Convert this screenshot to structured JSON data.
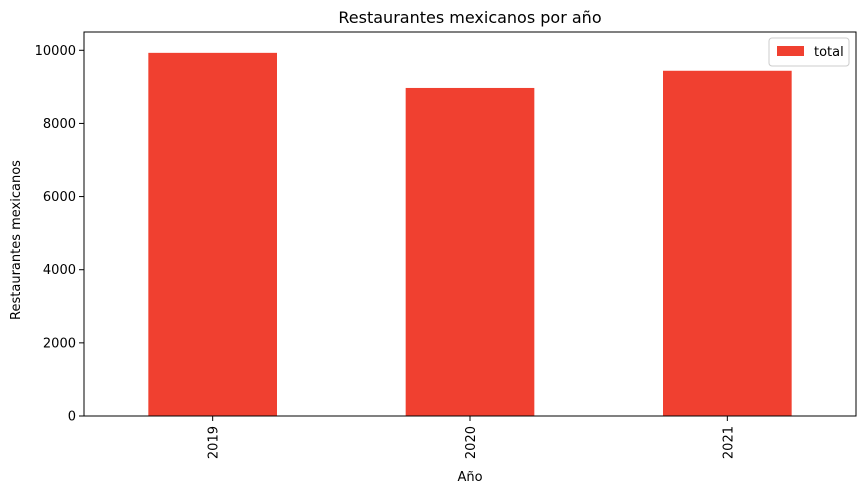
{
  "chart_data": {
    "type": "bar",
    "title": "Restaurantes mexicanos por año",
    "xlabel": "Año",
    "ylabel": "Restaurantes mexicanos",
    "categories": [
      "2019",
      "2020",
      "2021"
    ],
    "series": [
      {
        "name": "total",
        "values": [
          9930,
          8970,
          9440
        ],
        "color": "#f04030"
      }
    ],
    "ylim": [
      0,
      10500
    ],
    "yticks": [
      0,
      2000,
      4000,
      6000,
      8000,
      10000
    ],
    "ytick_labels": [
      "0",
      "2000",
      "4000",
      "6000",
      "8000",
      "10000"
    ],
    "grid": false,
    "legend_position": "top-right",
    "x_tick_rotation": "vertical"
  }
}
